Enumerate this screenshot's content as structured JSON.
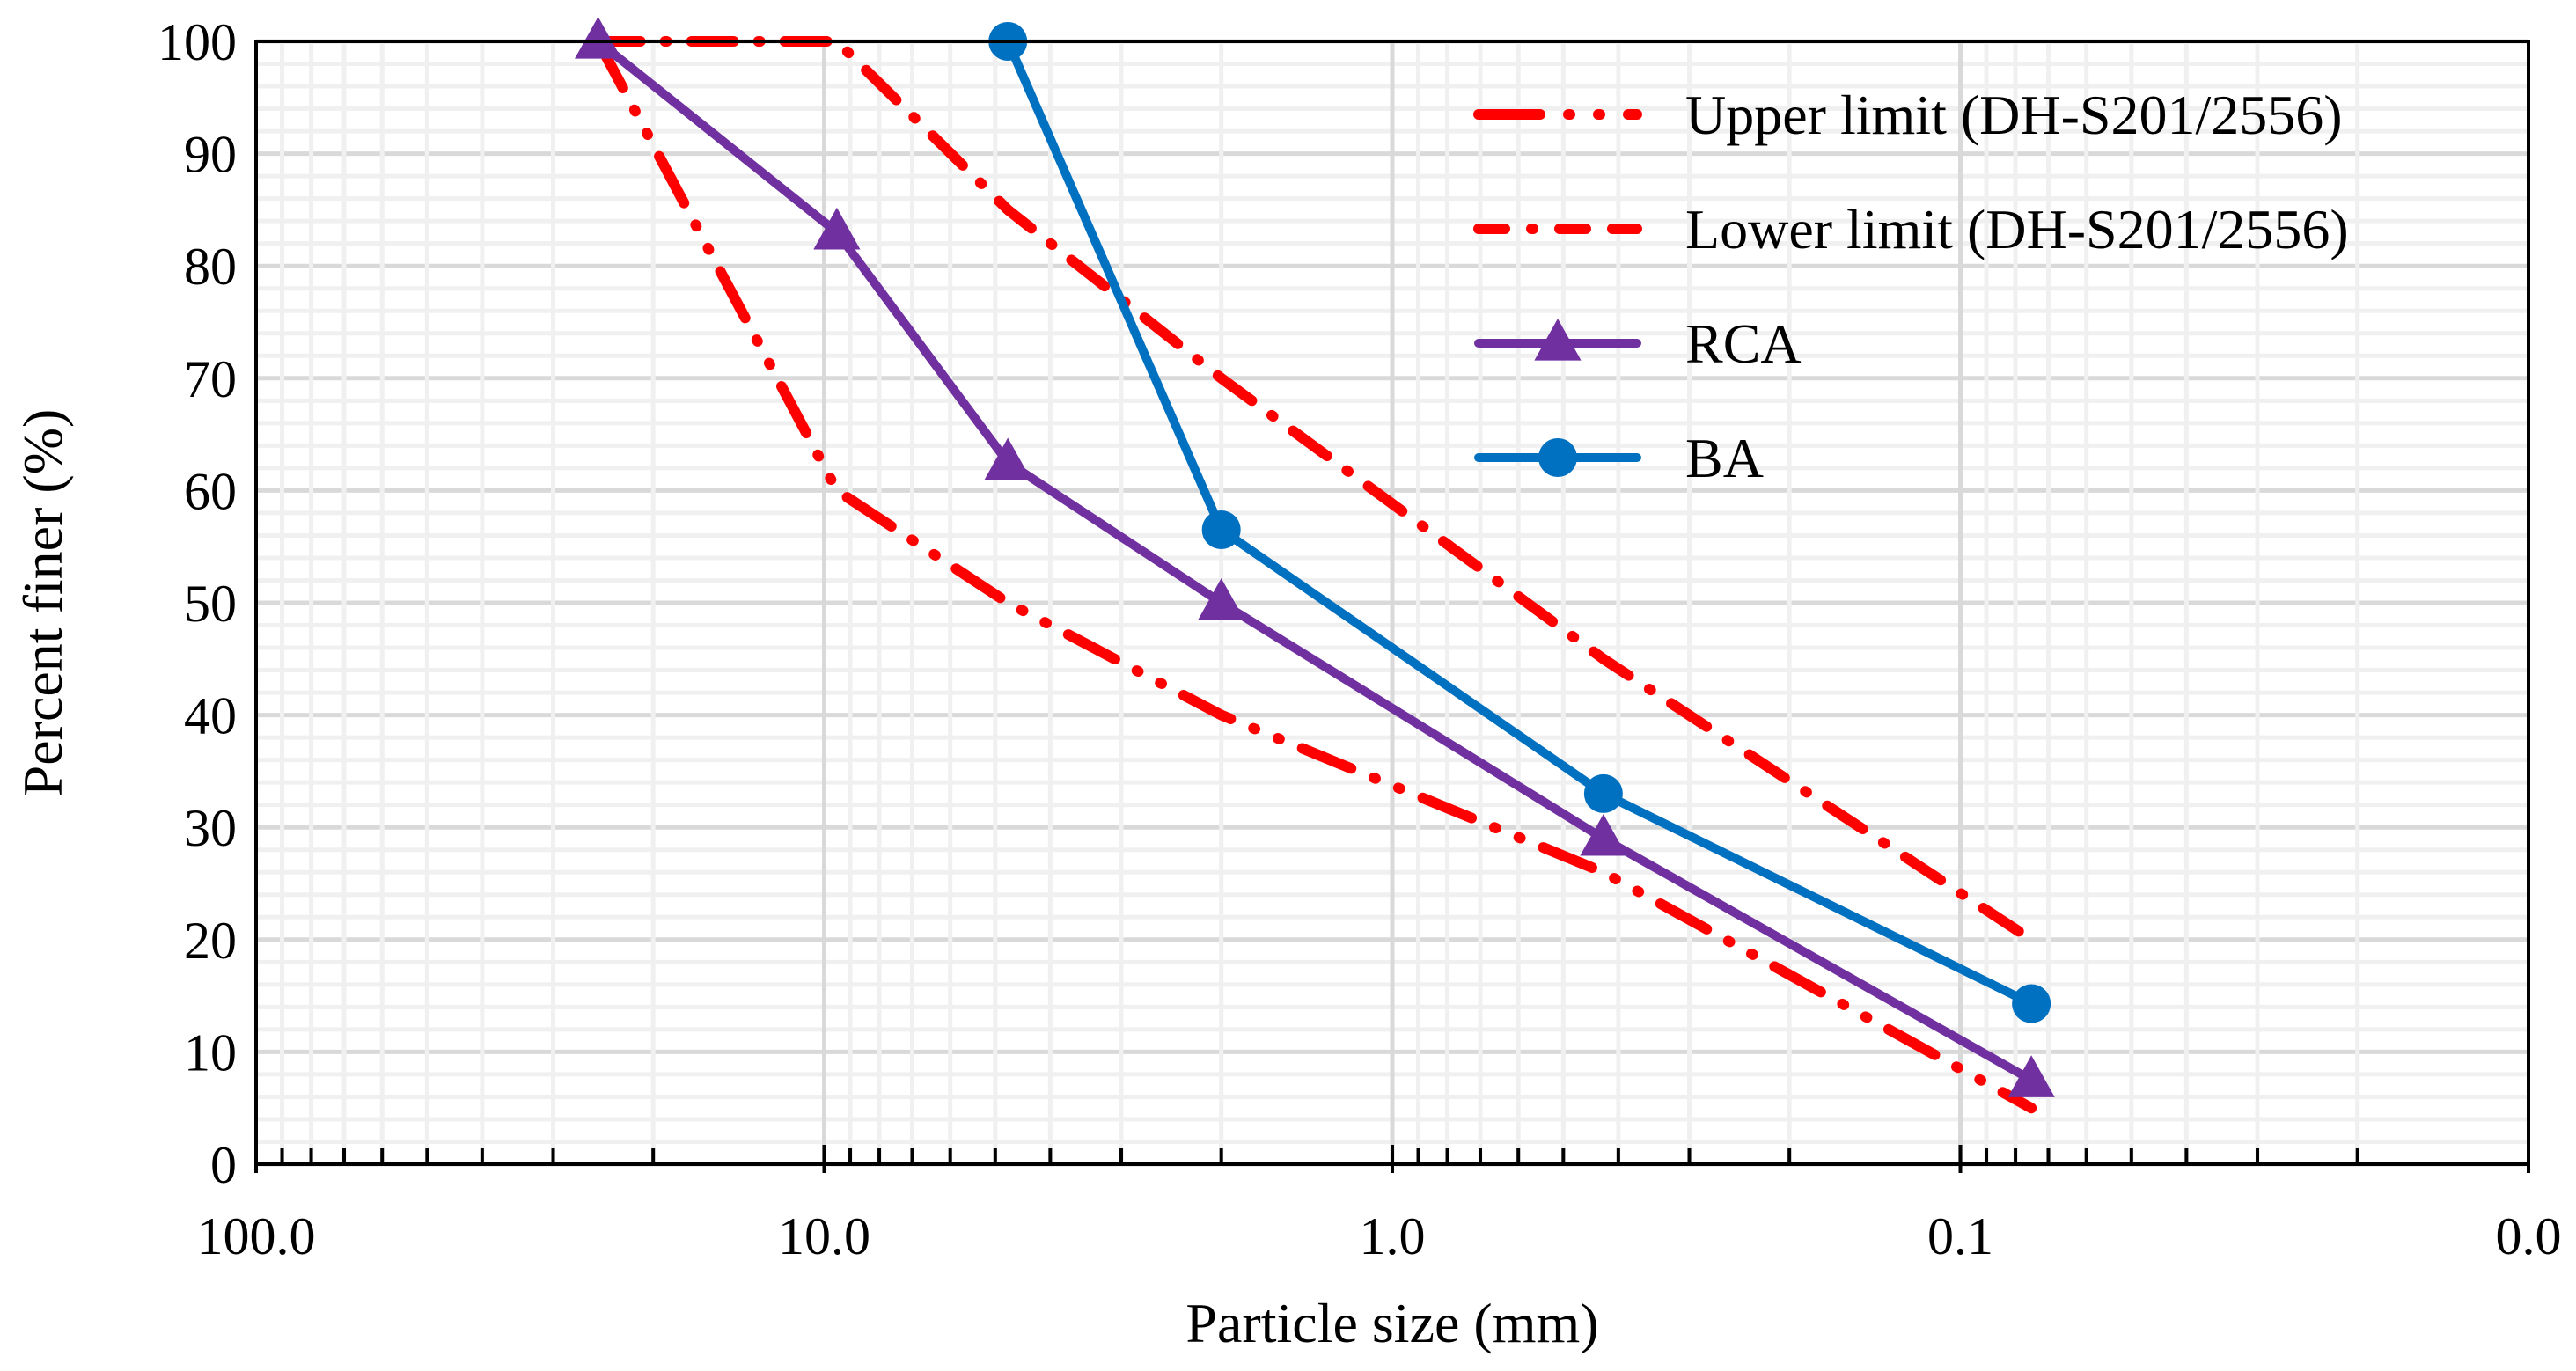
{
  "chart_data": {
    "type": "line",
    "title": "",
    "xlabel": "Particle size (mm)",
    "ylabel": "Percent finer (%)",
    "xscale": "log",
    "x_reversed": true,
    "xlim": [
      100,
      0.01
    ],
    "ylim": [
      0,
      100
    ],
    "x_tick_labels": [
      "100.0",
      "10.0",
      "1.0",
      "0.1",
      "0.0"
    ],
    "x_tick_values": [
      100,
      10,
      1,
      0.1,
      0.01
    ],
    "y_ticks": [
      0,
      10,
      20,
      30,
      40,
      50,
      60,
      70,
      80,
      90,
      100
    ],
    "grid": true,
    "legend_position": "top-right",
    "series": [
      {
        "name": "Upper limit (DH-S201/2556)",
        "style": "dash-dot-dot",
        "color": "#ff0000",
        "x": [
          25,
          9.5,
          4.75,
          2.0,
          0.425,
          0.075
        ],
        "y": [
          100,
          60,
          50,
          40,
          26,
          5
        ]
      },
      {
        "name": "Lower limit (DH-S201/2556)",
        "style": "dash-dot",
        "color": "#ff0000",
        "x": [
          25,
          9.5,
          4.75,
          2.0,
          0.425,
          0.075
        ],
        "y": [
          100,
          100,
          85,
          70,
          45,
          20
        ]
      },
      {
        "name": "RCA",
        "style": "solid",
        "marker": "triangle",
        "color": "#7030a0",
        "x": [
          25,
          9.5,
          4.75,
          2.0,
          0.425,
          0.075
        ],
        "y": [
          100,
          83,
          62.5,
          50,
          29,
          7.5
        ]
      },
      {
        "name": "BA",
        "style": "solid",
        "marker": "circle",
        "color": "#0070c0",
        "x": [
          4.75,
          2.0,
          0.425,
          0.075
        ],
        "y": [
          100,
          56.5,
          33,
          14.3
        ]
      }
    ]
  }
}
